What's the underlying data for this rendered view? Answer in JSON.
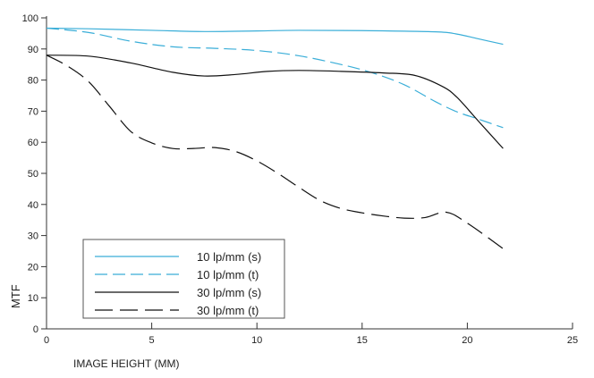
{
  "chart_data": {
    "type": "line",
    "title": "",
    "xlabel": "IMAGE HEIGHT (MM)",
    "ylabel": "MTF",
    "xlim": [
      0,
      25
    ],
    "ylim": [
      0,
      100
    ],
    "xticks": [
      0,
      5,
      10,
      15,
      20,
      25
    ],
    "yticks": [
      0,
      10,
      20,
      30,
      40,
      50,
      60,
      70,
      80,
      90,
      100
    ],
    "grid": false,
    "legend_position": "bottom-left",
    "series": [
      {
        "name": "10 lp/mm (s)",
        "color": "#3aaed8",
        "dash": "solid",
        "x": [
          0,
          2,
          5,
          7.5,
          10,
          12,
          15,
          18.5,
          19.5,
          20.5,
          21.7
        ],
        "y": [
          96.7,
          96.5,
          96,
          95.6,
          95.8,
          96,
          95.9,
          95.5,
          94.8,
          93.3,
          91.5
        ]
      },
      {
        "name": "10 lp/mm (t)",
        "color": "#3aaed8",
        "dash": "dashed",
        "x": [
          0,
          2,
          4,
          6,
          8,
          10,
          12,
          14,
          15.5,
          17,
          18.5,
          19.5,
          20.5,
          21.7
        ],
        "y": [
          96.7,
          95.3,
          92.5,
          90.7,
          90.2,
          89.5,
          87.8,
          85,
          82.3,
          78.5,
          73,
          69.8,
          67.5,
          64.7
        ]
      },
      {
        "name": "30 lp/mm (s)",
        "color": "#111111",
        "dash": "solid",
        "x": [
          0,
          2,
          4,
          6,
          7.5,
          9,
          10.5,
          12,
          14,
          16,
          17.5,
          18.8,
          19.5,
          20.5,
          21.7
        ],
        "y": [
          88,
          87.7,
          85.5,
          82.5,
          81.3,
          81.8,
          82.8,
          83.1,
          82.8,
          82.3,
          81.5,
          78,
          74.5,
          67,
          58
        ]
      },
      {
        "name": "30 lp/mm (t)",
        "color": "#111111",
        "dash": "longdash",
        "x": [
          0,
          1,
          2,
          3,
          4,
          5,
          6,
          7,
          8,
          9,
          10,
          11,
          12,
          13,
          14,
          15,
          16,
          17,
          18,
          19,
          20,
          21.7
        ],
        "y": [
          88,
          84.5,
          79.5,
          71.5,
          63.5,
          59.8,
          58,
          58,
          58.3,
          57,
          54,
          50,
          45.5,
          41.3,
          38.7,
          37.3,
          36.3,
          35.6,
          35.8,
          37.5,
          34,
          25.8
        ]
      }
    ]
  }
}
